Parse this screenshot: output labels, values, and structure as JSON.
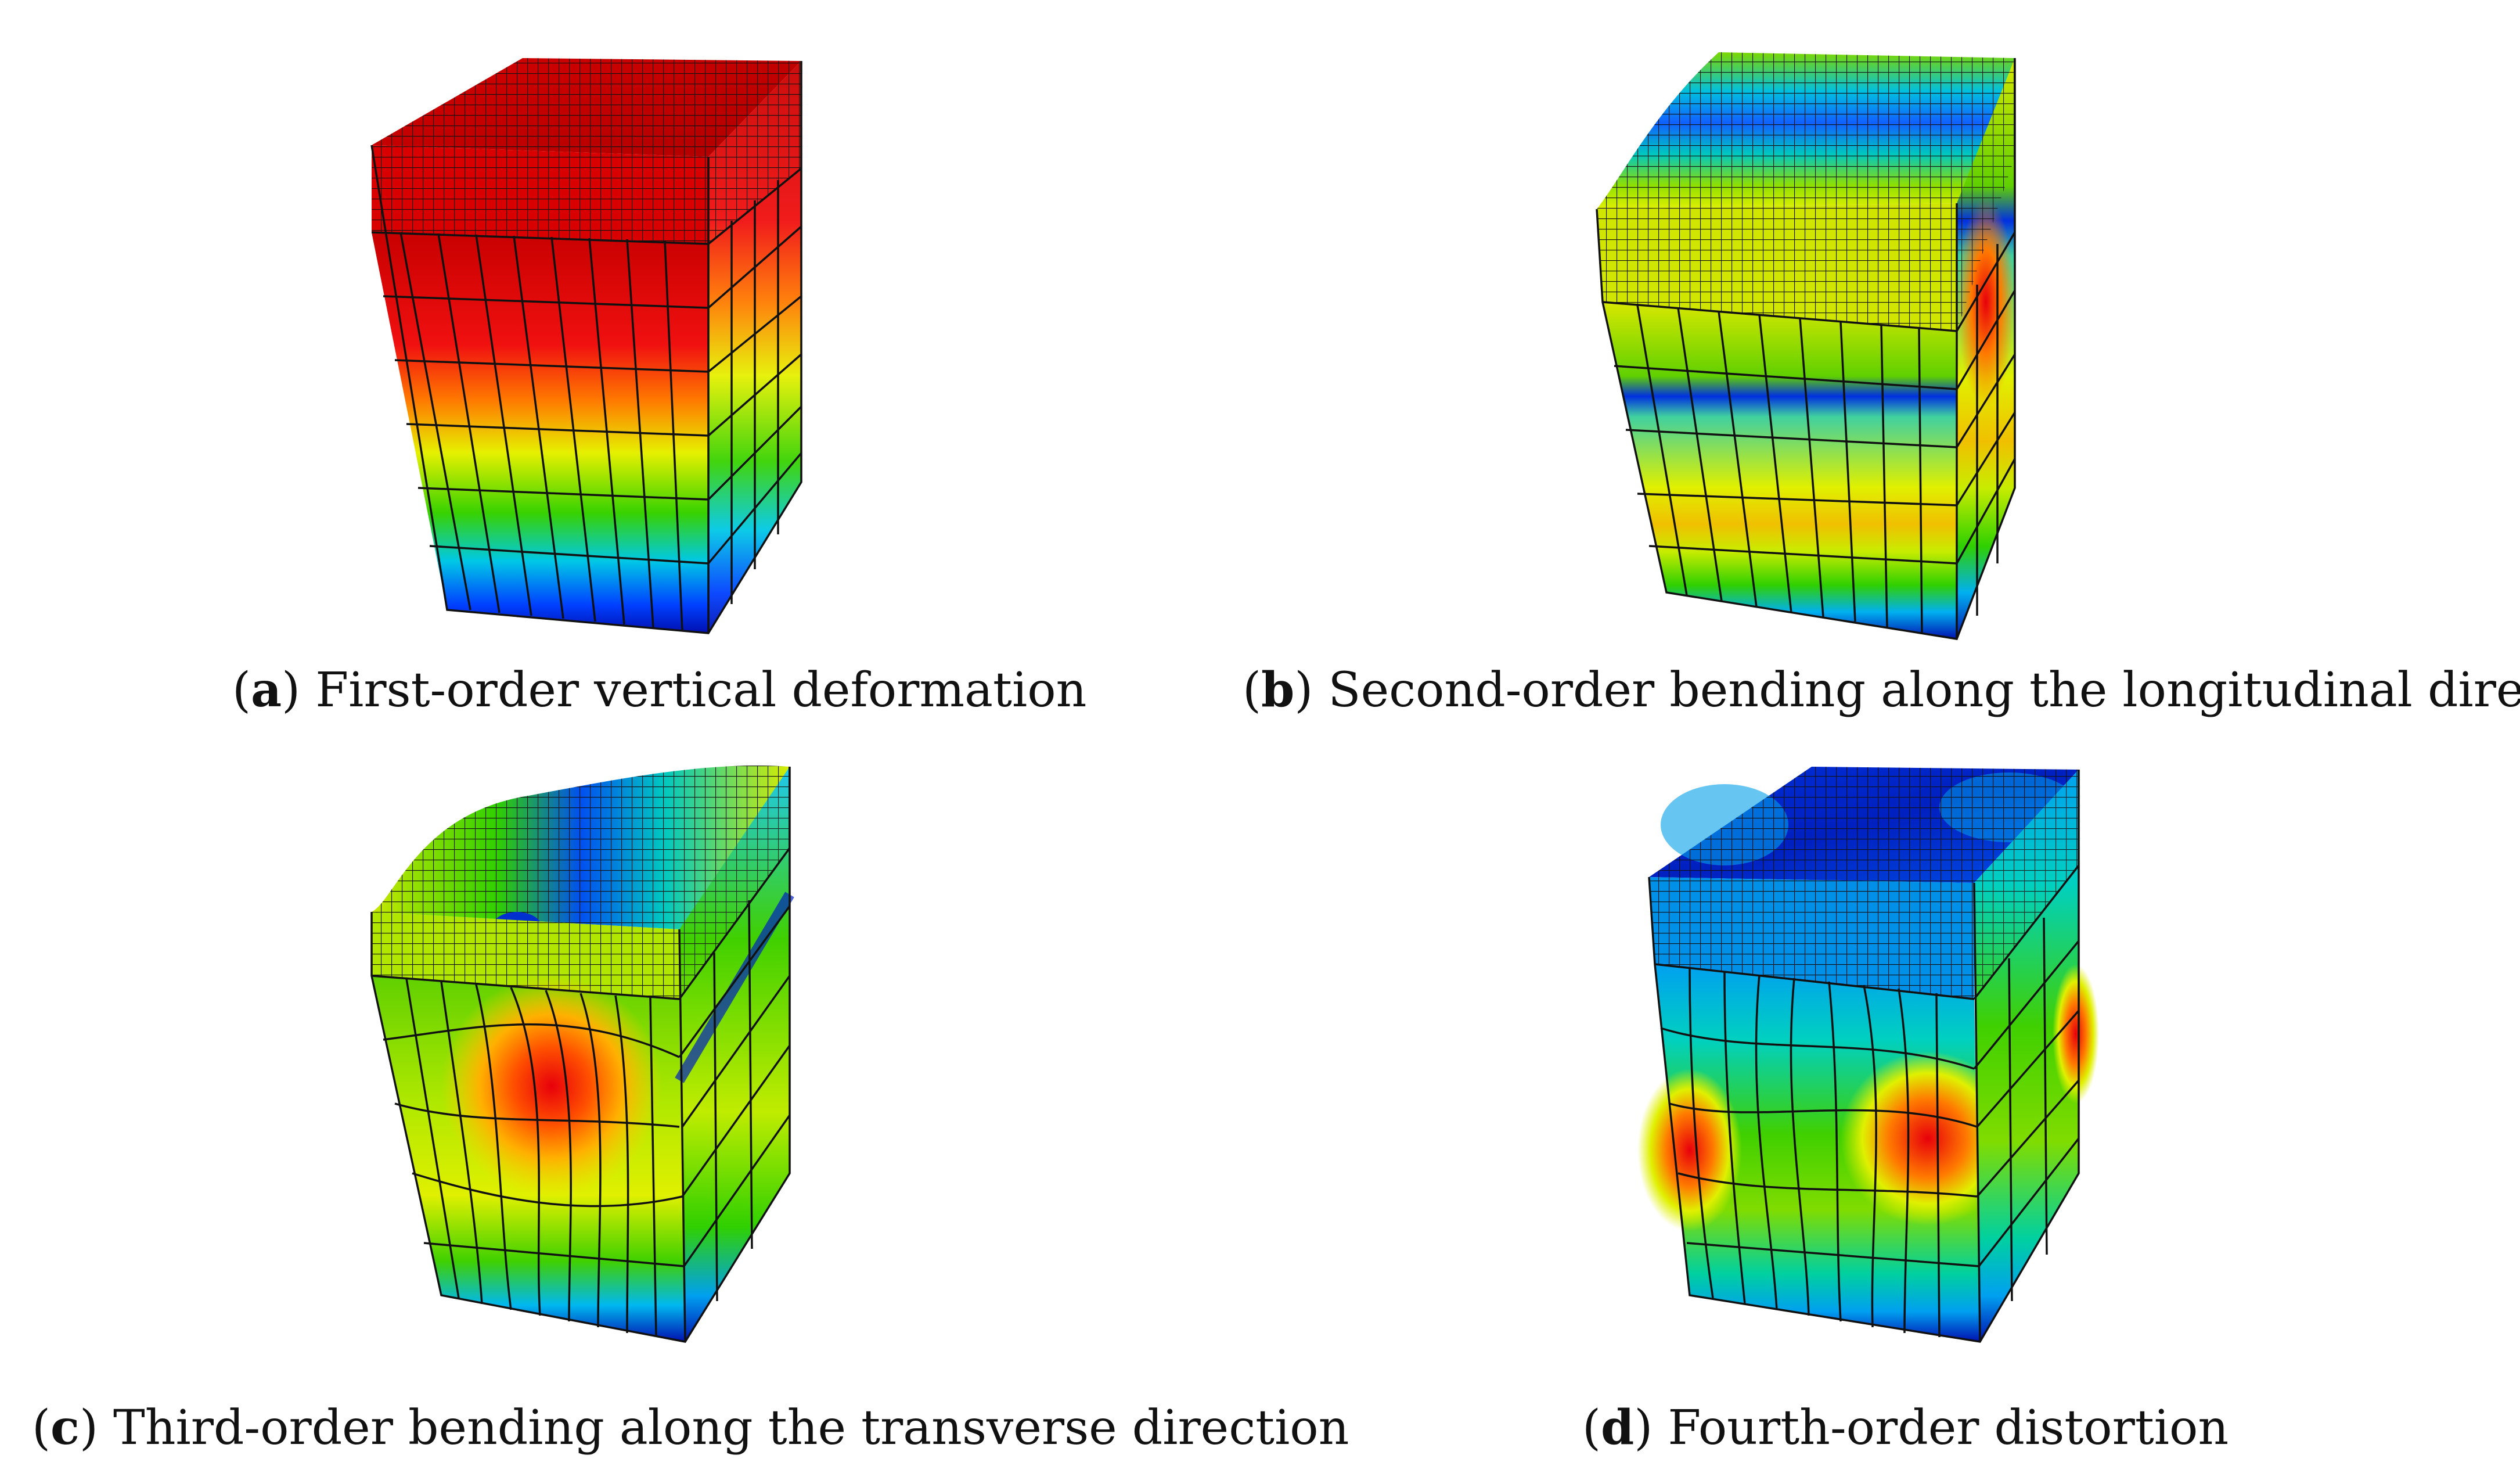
{
  "figure": {
    "panels": [
      {
        "id": "a",
        "letter": "a",
        "caption": "First-order vertical deformation"
      },
      {
        "id": "b",
        "letter": "b",
        "caption": "Second-order bending along the longitudinal direction"
      },
      {
        "id": "c",
        "letter": "c",
        "caption": "Third-order bending along the transverse direction"
      },
      {
        "id": "d",
        "letter": "d",
        "caption": "Fourth-order distortion"
      }
    ]
  },
  "colors": {
    "red": "#e8000b",
    "orange": "#ff7a00",
    "yellow": "#e6f000",
    "green": "#38d200",
    "cyan": "#00c8e6",
    "blue": "#0040ff",
    "darkblue": "#0010b0",
    "mesh": "#111111"
  }
}
